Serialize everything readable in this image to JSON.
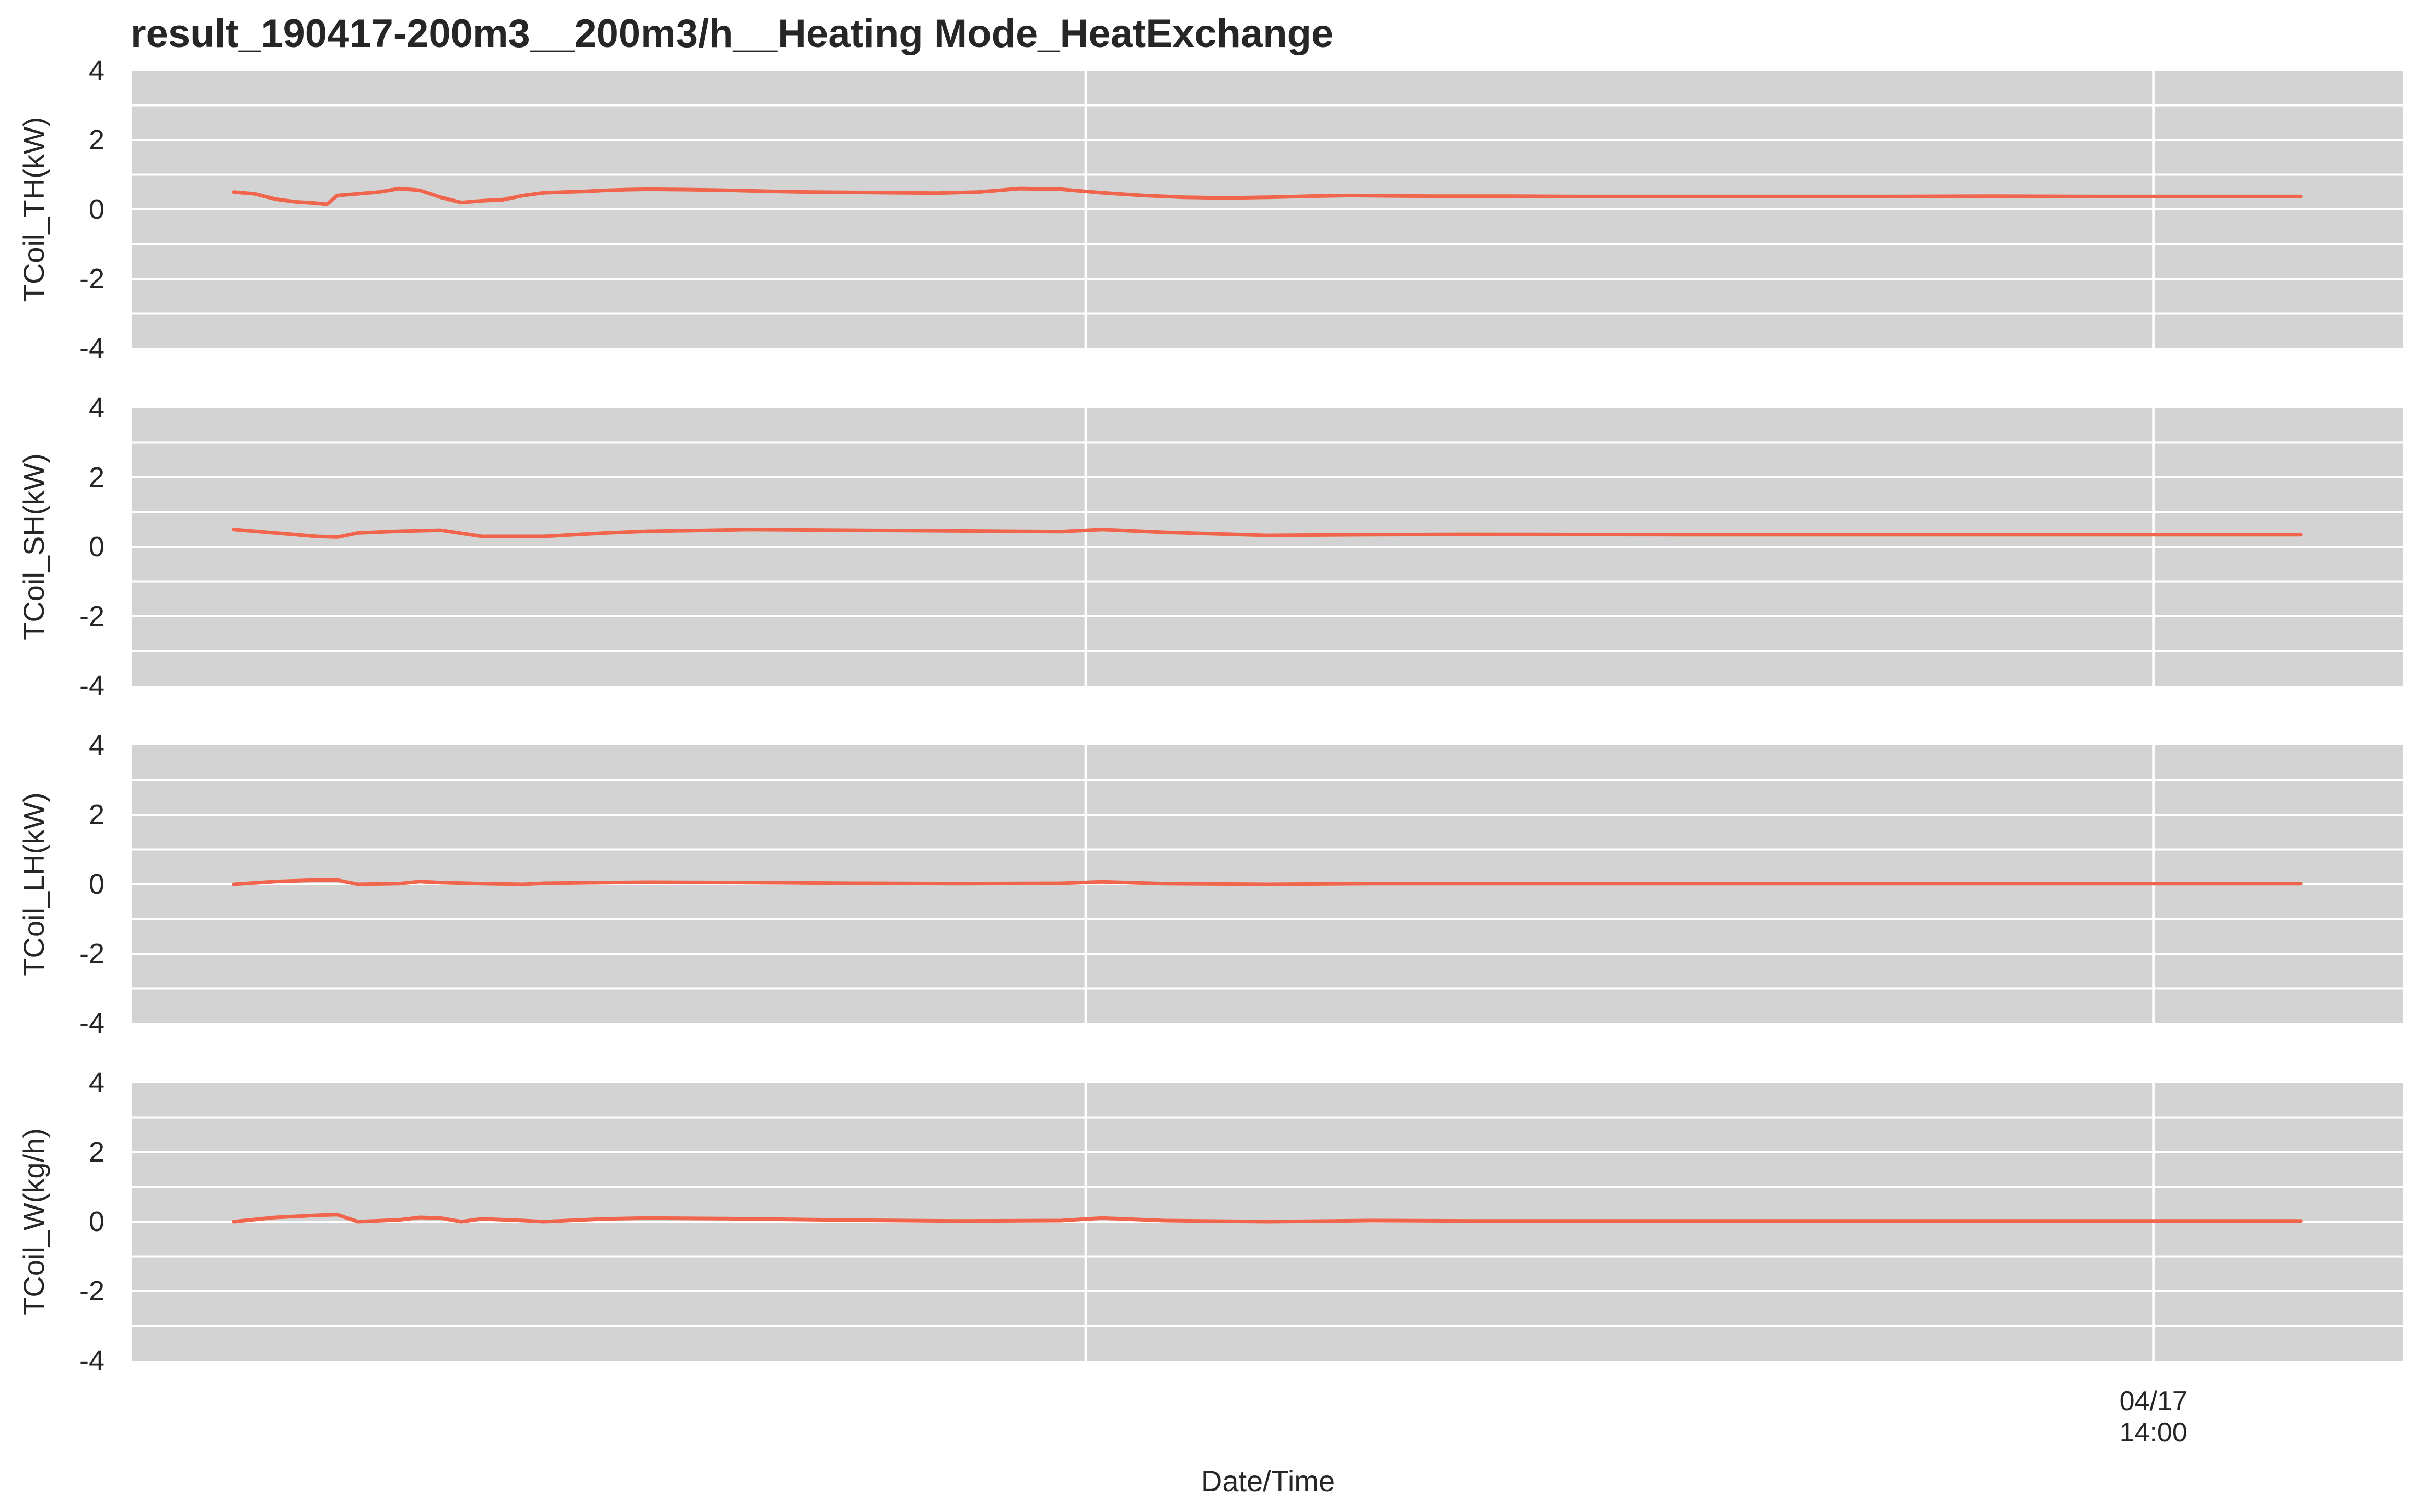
{
  "figure": {
    "title": "result_190417-200m3__200m3/h__Heating Mode_HeatExchange",
    "xlabel": "Date/Time"
  },
  "colors": {
    "panel_background": "#d3d3d3",
    "grid": "#ffffff",
    "line": "#f0654b",
    "text": "#262626"
  },
  "chart_data": [
    {
      "type": "line",
      "ylabel": "TCoil_TH(kW)",
      "ylim": [
        -4,
        4
      ],
      "yticks": [
        4,
        2,
        0,
        -2,
        -4
      ],
      "grid": true,
      "x": [
        0,
        0.01,
        0.02,
        0.03,
        0.04,
        0.045,
        0.05,
        0.06,
        0.07,
        0.08,
        0.09,
        0.1,
        0.11,
        0.12,
        0.13,
        0.14,
        0.15,
        0.16,
        0.17,
        0.18,
        0.19,
        0.2,
        0.22,
        0.24,
        0.26,
        0.28,
        0.3,
        0.32,
        0.34,
        0.36,
        0.38,
        0.4,
        0.42,
        0.44,
        0.46,
        0.48,
        0.5,
        0.52,
        0.54,
        0.56,
        0.58,
        0.6,
        0.62,
        0.65,
        0.7,
        0.75,
        0.8,
        0.85,
        0.9,
        0.95,
        1.0
      ],
      "y": [
        0.5,
        0.45,
        0.3,
        0.22,
        0.18,
        0.15,
        0.4,
        0.45,
        0.5,
        0.6,
        0.55,
        0.35,
        0.2,
        0.25,
        0.28,
        0.4,
        0.48,
        0.5,
        0.52,
        0.55,
        0.57,
        0.58,
        0.57,
        0.55,
        0.52,
        0.5,
        0.49,
        0.48,
        0.47,
        0.5,
        0.6,
        0.58,
        0.48,
        0.4,
        0.35,
        0.33,
        0.35,
        0.38,
        0.4,
        0.39,
        0.38,
        0.38,
        0.38,
        0.37,
        0.37,
        0.37,
        0.37,
        0.38,
        0.37,
        0.37,
        0.37
      ]
    },
    {
      "type": "line",
      "ylabel": "TCoil_SH(kW)",
      "ylim": [
        -4,
        4
      ],
      "yticks": [
        4,
        2,
        0,
        -2,
        -4
      ],
      "grid": true,
      "x": [
        0,
        0.02,
        0.04,
        0.05,
        0.06,
        0.08,
        0.1,
        0.12,
        0.15,
        0.18,
        0.2,
        0.25,
        0.3,
        0.35,
        0.4,
        0.42,
        0.45,
        0.5,
        0.55,
        0.6,
        0.7,
        0.8,
        0.9,
        1.0
      ],
      "y": [
        0.5,
        0.4,
        0.3,
        0.28,
        0.4,
        0.45,
        0.48,
        0.3,
        0.3,
        0.4,
        0.45,
        0.5,
        0.48,
        0.46,
        0.44,
        0.5,
        0.42,
        0.33,
        0.35,
        0.36,
        0.35,
        0.35,
        0.35,
        0.35
      ]
    },
    {
      "type": "line",
      "ylabel": "TCoil_LH(kW)",
      "ylim": [
        -4,
        4
      ],
      "yticks": [
        4,
        2,
        0,
        -2,
        -4
      ],
      "grid": true,
      "x": [
        0,
        0.02,
        0.04,
        0.05,
        0.06,
        0.08,
        0.09,
        0.1,
        0.12,
        0.14,
        0.15,
        0.18,
        0.2,
        0.25,
        0.3,
        0.35,
        0.4,
        0.42,
        0.45,
        0.5,
        0.55,
        0.6,
        0.7,
        0.8,
        0.9,
        1.0
      ],
      "y": [
        0.0,
        0.08,
        0.12,
        0.12,
        0.0,
        0.02,
        0.08,
        0.05,
        0.02,
        0.0,
        0.03,
        0.05,
        0.06,
        0.05,
        0.03,
        0.02,
        0.03,
        0.07,
        0.02,
        0.0,
        0.02,
        0.02,
        0.02,
        0.02,
        0.02,
        0.02
      ]
    },
    {
      "type": "line",
      "ylabel": "TCoil_W(kg/h)",
      "ylim": [
        -4,
        4
      ],
      "yticks": [
        4,
        2,
        0,
        -2,
        -4
      ],
      "grid": true,
      "x": [
        0,
        0.02,
        0.04,
        0.05,
        0.06,
        0.08,
        0.09,
        0.1,
        0.11,
        0.12,
        0.14,
        0.15,
        0.18,
        0.2,
        0.25,
        0.3,
        0.35,
        0.4,
        0.42,
        0.45,
        0.5,
        0.55,
        0.6,
        0.7,
        0.8,
        0.9,
        1.0
      ],
      "y": [
        0.0,
        0.12,
        0.18,
        0.2,
        0.0,
        0.05,
        0.12,
        0.1,
        0.0,
        0.08,
        0.03,
        0.0,
        0.08,
        0.1,
        0.08,
        0.04,
        0.02,
        0.03,
        0.1,
        0.03,
        0.0,
        0.03,
        0.02,
        0.02,
        0.02,
        0.02,
        0.02
      ]
    }
  ],
  "xaxis": {
    "ticks": [
      {
        "pos": 0.42,
        "label": ""
      },
      {
        "pos": 0.89,
        "label": "04/17\n14:00"
      }
    ]
  }
}
